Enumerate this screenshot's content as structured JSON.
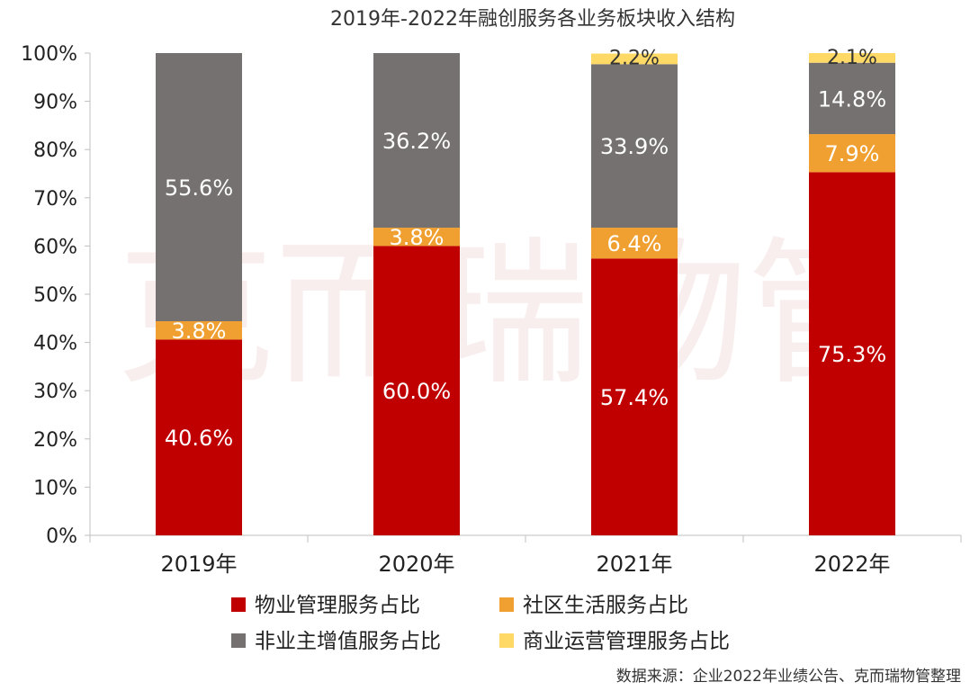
{
  "chart_data": {
    "type": "bar",
    "stacked": true,
    "title": "2019年-2022年融创服务各业务板块收入结构",
    "categories": [
      "2019年",
      "2020年",
      "2021年",
      "2022年"
    ],
    "y_ticks": [
      "0%",
      "10%",
      "20%",
      "30%",
      "40%",
      "50%",
      "60%",
      "70%",
      "80%",
      "90%",
      "100%"
    ],
    "ylim": [
      0,
      100
    ],
    "series": [
      {
        "name": "物业管理服务占比",
        "color": "#c00000",
        "values": [
          40.6,
          60.0,
          57.4,
          75.3
        ],
        "labels": [
          "40.6%",
          "60.0%",
          "57.4%",
          "75.3%"
        ]
      },
      {
        "name": "社区生活服务占比",
        "color": "#f0a030",
        "values": [
          3.8,
          3.8,
          6.4,
          7.9
        ],
        "labels": [
          "3.8%",
          "3.8%",
          "6.4%",
          "7.9%"
        ]
      },
      {
        "name": "非业主增值服务占比",
        "color": "#767171",
        "values": [
          55.6,
          36.2,
          33.9,
          14.8
        ],
        "labels": [
          "55.6%",
          "36.2%",
          "33.9%",
          "14.8%"
        ]
      },
      {
        "name": "商业运营管理服务占比",
        "color": "#ffd966",
        "values": [
          0,
          0,
          2.2,
          2.1
        ],
        "labels": [
          "",
          "",
          "2.2%",
          "2.1%"
        ]
      }
    ],
    "legend_position": "bottom",
    "grid": false
  },
  "watermark": "克而瑞物管",
  "source": "数据来源：企业2022年业绩公告、克而瑞物管整理"
}
